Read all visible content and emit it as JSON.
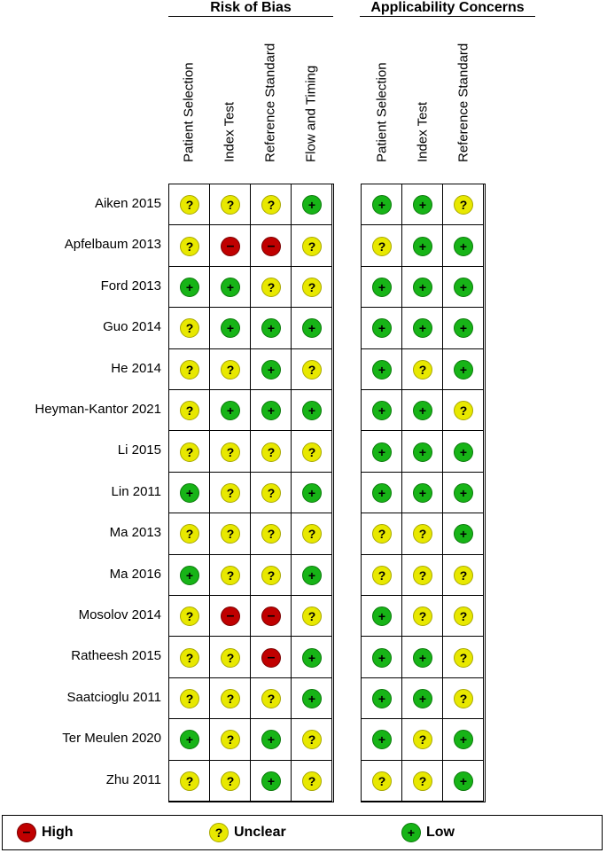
{
  "groups": [
    {
      "title": "Risk of Bias",
      "domains": [
        "Patient Selection",
        "Index Test",
        "Reference Standard",
        "Flow and Timing"
      ]
    },
    {
      "title": "Applicability Concerns",
      "domains": [
        "Patient Selection",
        "Index Test",
        "Reference Standard"
      ]
    }
  ],
  "symbols": {
    "low": "+",
    "unclear": "?",
    "high": "–"
  },
  "colors": {
    "low": "#17b417",
    "unclear": "#e8e800",
    "high": "#c00000"
  },
  "chart_data": {
    "type": "table",
    "categories": [
      "low",
      "unclear",
      "high"
    ],
    "studies": [
      {
        "name": "Aiken 2015",
        "rob": [
          "unclear",
          "unclear",
          "unclear",
          "low"
        ],
        "app": [
          "low",
          "low",
          "unclear"
        ]
      },
      {
        "name": "Apfelbaum 2013",
        "rob": [
          "unclear",
          "high",
          "high",
          "unclear"
        ],
        "app": [
          "unclear",
          "low",
          "low"
        ]
      },
      {
        "name": "Ford 2013",
        "rob": [
          "low",
          "low",
          "unclear",
          "unclear"
        ],
        "app": [
          "low",
          "low",
          "low"
        ]
      },
      {
        "name": "Guo 2014",
        "rob": [
          "unclear",
          "low",
          "low",
          "low"
        ],
        "app": [
          "low",
          "low",
          "low"
        ]
      },
      {
        "name": "He 2014",
        "rob": [
          "unclear",
          "unclear",
          "low",
          "unclear"
        ],
        "app": [
          "low",
          "unclear",
          "low"
        ]
      },
      {
        "name": "Heyman-Kantor 2021",
        "rob": [
          "unclear",
          "low",
          "low",
          "low"
        ],
        "app": [
          "low",
          "low",
          "unclear"
        ]
      },
      {
        "name": "Li 2015",
        "rob": [
          "unclear",
          "unclear",
          "unclear",
          "unclear"
        ],
        "app": [
          "low",
          "low",
          "low"
        ]
      },
      {
        "name": "Lin 2011",
        "rob": [
          "low",
          "unclear",
          "unclear",
          "low"
        ],
        "app": [
          "low",
          "low",
          "low"
        ]
      },
      {
        "name": "Ma 2013",
        "rob": [
          "unclear",
          "unclear",
          "unclear",
          "unclear"
        ],
        "app": [
          "unclear",
          "unclear",
          "low"
        ]
      },
      {
        "name": "Ma 2016",
        "rob": [
          "low",
          "unclear",
          "unclear",
          "low"
        ],
        "app": [
          "unclear",
          "unclear",
          "unclear"
        ]
      },
      {
        "name": "Mosolov 2014",
        "rob": [
          "unclear",
          "high",
          "high",
          "unclear"
        ],
        "app": [
          "low",
          "unclear",
          "unclear"
        ]
      },
      {
        "name": "Ratheesh 2015",
        "rob": [
          "unclear",
          "unclear",
          "high",
          "low"
        ],
        "app": [
          "low",
          "low",
          "unclear"
        ]
      },
      {
        "name": "Saatcioglu 2011",
        "rob": [
          "unclear",
          "unclear",
          "unclear",
          "low"
        ],
        "app": [
          "low",
          "low",
          "unclear"
        ]
      },
      {
        "name": "Ter Meulen 2020",
        "rob": [
          "low",
          "unclear",
          "low",
          "unclear"
        ],
        "app": [
          "low",
          "unclear",
          "low"
        ]
      },
      {
        "name": "Zhu 2011",
        "rob": [
          "unclear",
          "unclear",
          "low",
          "unclear"
        ],
        "app": [
          "unclear",
          "unclear",
          "low"
        ]
      }
    ]
  },
  "legend": [
    {
      "key": "high",
      "label": "High"
    },
    {
      "key": "unclear",
      "label": "Unclear"
    },
    {
      "key": "low",
      "label": "Low"
    }
  ]
}
